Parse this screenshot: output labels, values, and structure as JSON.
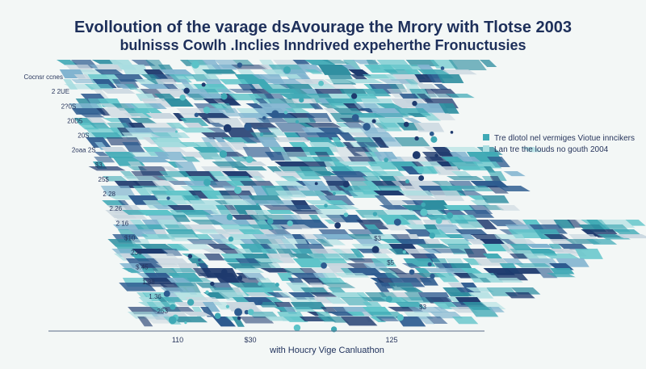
{
  "header": {
    "title_line1": "Evolloution of the varage dsAvourage the Mrory with Tlotse 2003",
    "title_line2": "bulnisss Cowlh .Inclies Inndrived expeherthe Fronuctusies"
  },
  "legend": {
    "items": [
      "Tre dlotol nel vermiges Viotue inncikers",
      "Lan tre the louds no gouth 2004"
    ]
  },
  "y_labels": [
    "Cocnsr ccnes",
    "2 2UE",
    "2?0S",
    "20D5",
    "20S",
    "2oaa 2S",
    "$3",
    "25$",
    "2 28",
    "2.26",
    "2 16",
    "$10",
    "236",
    "$.45",
    "1.38",
    "1.36",
    "253"
  ],
  "right_labels": [
    "$3",
    "$5",
    "$3"
  ],
  "x_labels": [
    "110",
    "$30",
    "125"
  ],
  "x_axis_label": "with Houcry Vige Canluathon"
}
